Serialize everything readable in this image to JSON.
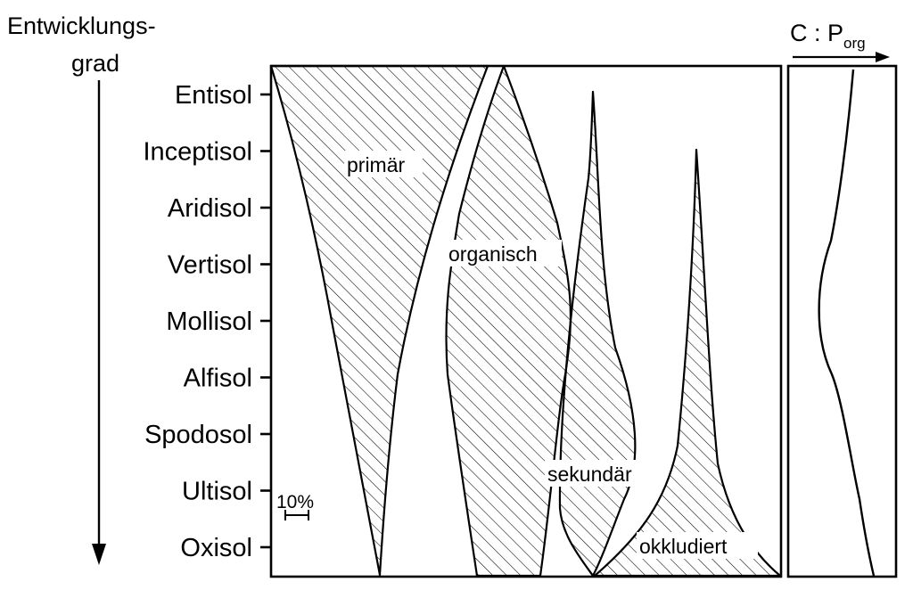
{
  "axis": {
    "title_line1": "Entwicklungs-",
    "title_line2": "grad"
  },
  "soil_orders": [
    "Entisol",
    "Inceptisol",
    "Aridisol",
    "Vertisol",
    "Mollisol",
    "Alfisol",
    "Spodosol",
    "Ultisol",
    "Oxisol"
  ],
  "fractions": {
    "primary": "primär",
    "organic": "organisch",
    "secondary": "sekundär",
    "occluded": "okkludiert"
  },
  "scale_bar": {
    "label": "10%"
  },
  "ratio_panel": {
    "label_main": "C : P",
    "label_sub": "org"
  },
  "colors": {
    "ink": "#000000",
    "background": "#ffffff"
  }
}
